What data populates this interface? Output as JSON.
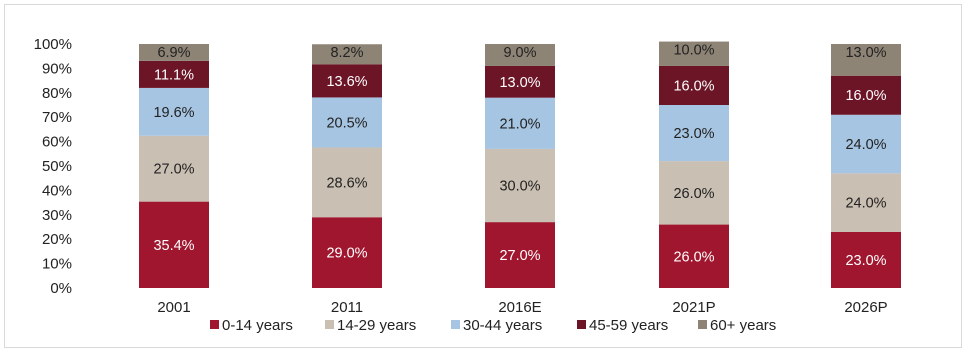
{
  "chart_data": {
    "type": "bar",
    "stacked": true,
    "categories": [
      "2001",
      "2011",
      "2016E",
      "2021P",
      "2026P"
    ],
    "series": [
      {
        "name": "0-14 years",
        "color": "#a0162e",
        "values": [
          35.4,
          29.0,
          27.0,
          26.0,
          23.0
        ]
      },
      {
        "name": "14-29 years",
        "color": "#c9bfb2",
        "values": [
          27.0,
          28.6,
          30.0,
          26.0,
          24.0
        ]
      },
      {
        "name": "30-44 years",
        "color": "#a6c5e2",
        "values": [
          19.6,
          20.5,
          21.0,
          23.0,
          24.0
        ]
      },
      {
        "name": "45-59 years",
        "color": "#6b1526",
        "values": [
          11.1,
          13.6,
          13.0,
          16.0,
          16.0
        ]
      },
      {
        "name": "60+ years",
        "color": "#8e8476",
        "values": [
          6.9,
          8.2,
          9.0,
          10.0,
          13.0
        ]
      }
    ],
    "labels": [
      [
        "35.4%",
        "29.0%",
        "27.0%",
        "26.0%",
        "23.0%"
      ],
      [
        "27.0%",
        "28.6%",
        "30.0%",
        "26.0%",
        "24.0%"
      ],
      [
        "19.6%",
        "20.5%",
        "21.0%",
        "23.0%",
        "24.0%"
      ],
      [
        "11.1%",
        "13.6%",
        "13.0%",
        "16.0%",
        "16.0%"
      ],
      [
        "6.9%",
        "8.2%",
        "9.0%",
        "10.0%",
        "13.0%"
      ]
    ],
    "yticks": [
      "0%",
      "10%",
      "20%",
      "30%",
      "40%",
      "50%",
      "60%",
      "70%",
      "80%",
      "90%",
      "100%"
    ],
    "ylim": [
      0,
      100
    ],
    "grid": false,
    "legend_position": "bottom"
  }
}
